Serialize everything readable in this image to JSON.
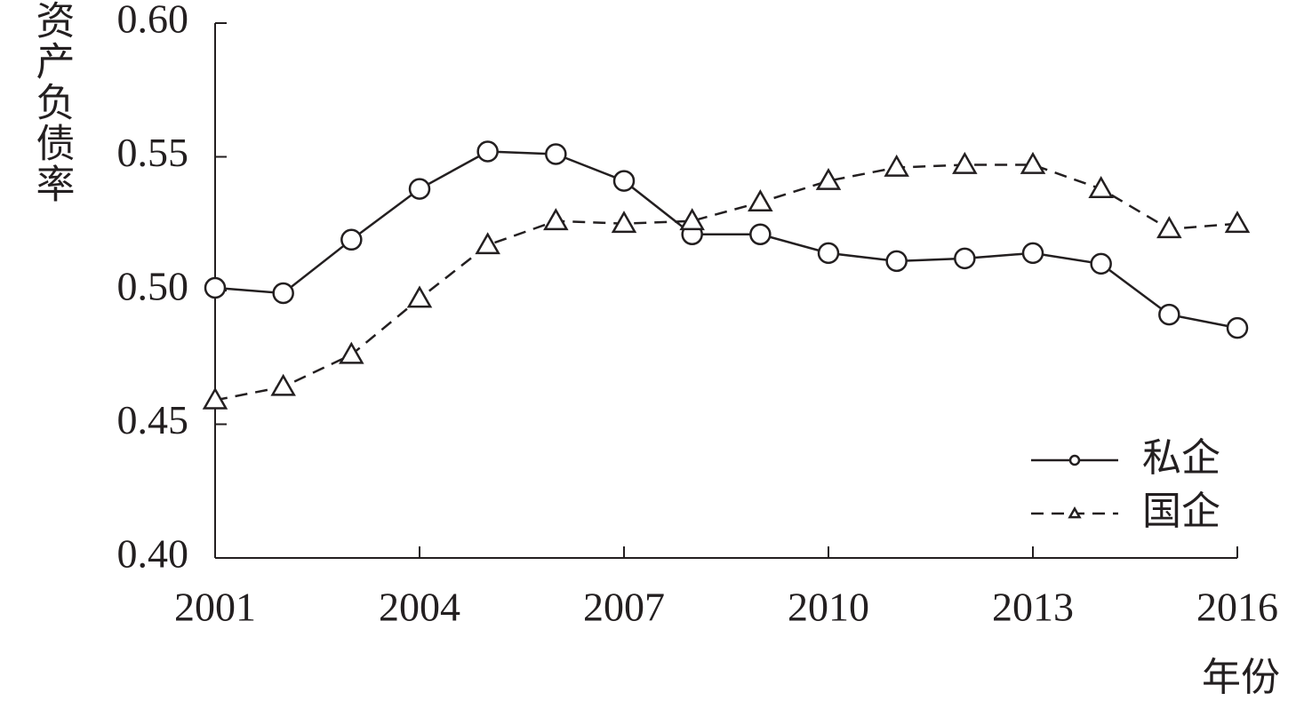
{
  "chart_data": {
    "type": "line",
    "y_label": "资产负债率",
    "x_label": "年份",
    "x": [
      2001,
      2002,
      2003,
      2004,
      2005,
      2006,
      2007,
      2008,
      2009,
      2010,
      2011,
      2012,
      2013,
      2014,
      2015,
      2016
    ],
    "series": [
      {
        "name": "私企",
        "color": "#231f20",
        "line_style": "solid",
        "marker": "circle",
        "values": [
          0.501,
          0.499,
          0.519,
          0.538,
          0.552,
          0.551,
          0.541,
          0.521,
          0.521,
          0.514,
          0.511,
          0.512,
          0.514,
          0.51,
          0.491,
          0.486
        ]
      },
      {
        "name": "国企",
        "color": "#231f20",
        "line_style": "dashed",
        "marker": "triangle",
        "values": [
          0.459,
          0.464,
          0.476,
          0.497,
          0.517,
          0.526,
          0.525,
          0.526,
          0.533,
          0.541,
          0.546,
          0.547,
          0.547,
          0.538,
          0.523,
          0.525
        ]
      }
    ],
    "xlim": [
      2001,
      2016
    ],
    "xticks": [
      2001,
      2004,
      2007,
      2010,
      2013,
      2016
    ],
    "ylim": [
      0.4,
      0.6
    ],
    "yticks": [
      {
        "value": 0.4,
        "label": "0.40"
      },
      {
        "value": 0.45,
        "label": "0.45"
      },
      {
        "value": 0.5,
        "label": "0.50"
      },
      {
        "value": 0.55,
        "label": "0.55"
      },
      {
        "value": 0.6,
        "label": "0.60"
      }
    ],
    "grid": false,
    "legend": "lower right"
  }
}
